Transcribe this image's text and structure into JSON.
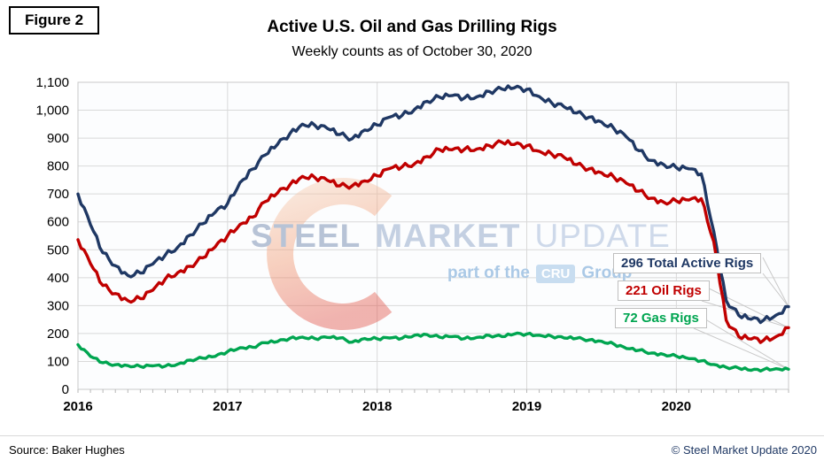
{
  "figure_label": "Figure 2",
  "header": {
    "title": "Active U.S. Oil and Gas Drilling Rigs",
    "subtitle": "Weekly counts as of October 30, 2020"
  },
  "watermark": {
    "word1": "STEEL",
    "word2": "MARKET",
    "word3": "UPDATE",
    "tagline_prefix": "part of the",
    "badge": "CRU",
    "tagline_suffix": "Group"
  },
  "footer": {
    "source": "Source: Baker Hughes",
    "copyright": "© Steel Market Update 2020"
  },
  "chart_data": {
    "type": "line",
    "title": "Active U.S. Oil and Gas Drilling Rigs",
    "subtitle": "Weekly counts as of October 30, 2020",
    "xlabel": "",
    "ylabel": "",
    "ylim": [
      0,
      1100
    ],
    "grid": true,
    "legend_position": "callouts-right",
    "yticks": [
      "0",
      "100",
      "200",
      "300",
      "400",
      "500",
      "600",
      "700",
      "800",
      "900",
      "1,000",
      "1,100"
    ],
    "xticks": [
      "2016",
      "2017",
      "2018",
      "2019",
      "2020"
    ],
    "xtick_month_indices": [
      0,
      12,
      24,
      36,
      48
    ],
    "months": [
      "2016-01",
      "2016-02",
      "2016-03",
      "2016-04",
      "2016-05",
      "2016-06",
      "2016-07",
      "2016-08",
      "2016-09",
      "2016-10",
      "2016-11",
      "2016-12",
      "2017-01",
      "2017-02",
      "2017-03",
      "2017-04",
      "2017-05",
      "2017-06",
      "2017-07",
      "2017-08",
      "2017-09",
      "2017-10",
      "2017-11",
      "2017-12",
      "2018-01",
      "2018-02",
      "2018-03",
      "2018-04",
      "2018-05",
      "2018-06",
      "2018-07",
      "2018-08",
      "2018-09",
      "2018-10",
      "2018-11",
      "2018-12",
      "2019-01",
      "2019-02",
      "2019-03",
      "2019-04",
      "2019-05",
      "2019-06",
      "2019-07",
      "2019-08",
      "2019-09",
      "2019-10",
      "2019-11",
      "2019-12",
      "2020-01",
      "2020-02",
      "2020-03",
      "2020-04",
      "2020-05",
      "2020-06",
      "2020-07",
      "2020-08",
      "2020-09",
      "2020-10"
    ],
    "series": [
      {
        "name": "Total Active Rigs",
        "color": "#1f3864",
        "callout": "296 Total Active Rigs",
        "final_value": 296,
        "values": [
          700,
          590,
          489,
          443,
          408,
          417,
          449,
          481,
          509,
          553,
          593,
          634,
          665,
          741,
          789,
          839,
          877,
          916,
          950,
          946,
          935,
          913,
          898,
          929,
          947,
          975,
          981,
          1003,
          1032,
          1047,
          1052,
          1044,
          1048,
          1067,
          1076,
          1080,
          1075,
          1049,
          1026,
          1012,
          990,
          975,
          958,
          934,
          904,
          855,
          820,
          805,
          794,
          790,
          772,
          566,
          318,
          265,
          251,
          248,
          266,
          296
        ]
      },
      {
        "name": "Oil Rigs",
        "color": "#c00000",
        "callout": "221 Oil Rigs",
        "final_value": 221,
        "values": [
          536,
          450,
          372,
          343,
          318,
          325,
          355,
          395,
          418,
          441,
          471,
          510,
          550,
          591,
          617,
          672,
          703,
          733,
          763,
          759,
          749,
          729,
          729,
          747,
          765,
          791,
          797,
          808,
          834,
          859,
          858,
          860,
          861,
          873,
          885,
          877,
          873,
          853,
          843,
          831,
          805,
          790,
          776,
          760,
          738,
          710,
          685,
          670,
          675,
          678,
          683,
          529,
          248,
          189,
          180,
          176,
          189,
          221
        ]
      },
      {
        "name": "Gas Rigs",
        "color": "#00a550",
        "callout": "72 Gas Rigs",
        "final_value": 72,
        "values": [
          160,
          118,
          95,
          88,
          85,
          82,
          84,
          83,
          90,
          105,
          112,
          118,
          135,
          149,
          151,
          167,
          171,
          183,
          187,
          182,
          186,
          184,
          169,
          182,
          181,
          184,
          183,
          194,
          196,
          187,
          189,
          182,
          186,
          193,
          189,
          198,
          198,
          194,
          190,
          184,
          183,
          177,
          172,
          162,
          146,
          140,
          130,
          125,
          119,
          110,
          102,
          89,
          79,
          76,
          68,
          71,
          74,
          72
        ]
      }
    ]
  }
}
